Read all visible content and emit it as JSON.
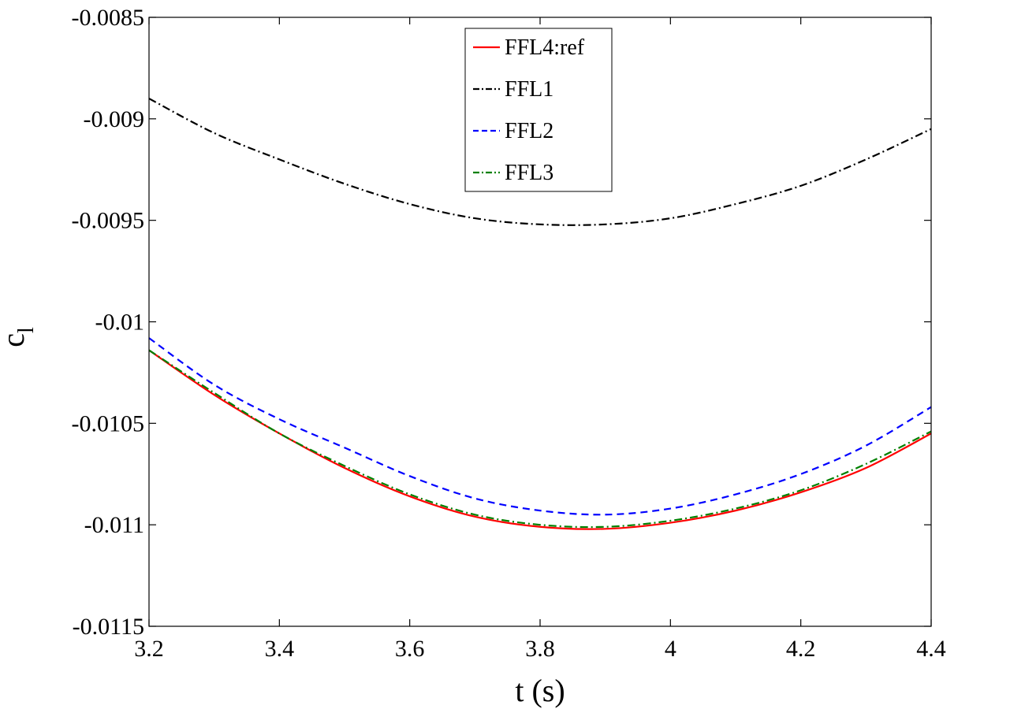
{
  "chart_data": {
    "type": "line",
    "title": "",
    "xlabel": "t (s)",
    "ylabel_base": "c",
    "ylabel_sub": "l",
    "xlim": [
      3.2,
      4.4
    ],
    "ylim": [
      -0.0115,
      -0.0085
    ],
    "xticks": [
      3.2,
      3.4,
      3.6,
      3.8,
      4.0,
      4.2,
      4.4
    ],
    "xtick_labels": [
      "3.2",
      "3.4",
      "3.6",
      "3.8",
      "4",
      "4.2",
      "4.4"
    ],
    "yticks": [
      -0.0085,
      -0.009,
      -0.0095,
      -0.01,
      -0.0105,
      -0.011,
      -0.0115
    ],
    "ytick_labels": [
      "-0.0085",
      "-0.009",
      "-0.0095",
      "-0.01",
      "-0.0105",
      "-0.011",
      "-0.0115"
    ],
    "grid": false,
    "legend_position": "top-center",
    "x": [
      3.2,
      3.3,
      3.4,
      3.5,
      3.6,
      3.7,
      3.8,
      3.9,
      4.0,
      4.1,
      4.2,
      4.3,
      4.4
    ],
    "series": [
      {
        "name": "FFL4:ref",
        "color": "#ff0000",
        "dash": "solid",
        "values": [
          -0.01014,
          -0.01036,
          -0.01055,
          -0.01072,
          -0.01086,
          -0.01096,
          -0.01101,
          -0.01102,
          -0.01099,
          -0.01093,
          -0.01084,
          -0.01072,
          -0.01055
        ]
      },
      {
        "name": "FFL1",
        "color": "#000000",
        "dash": "dashdot",
        "values": [
          -0.0089,
          -0.00907,
          -0.0092,
          -0.00932,
          -0.00942,
          -0.00949,
          -0.00952,
          -0.00952,
          -0.00949,
          -0.00942,
          -0.00933,
          -0.0092,
          -0.00905
        ]
      },
      {
        "name": "FFL2",
        "color": "#0000ff",
        "dash": "dashed",
        "values": [
          -0.01008,
          -0.01031,
          -0.01048,
          -0.01062,
          -0.01076,
          -0.01087,
          -0.01093,
          -0.01095,
          -0.01092,
          -0.01085,
          -0.01075,
          -0.01061,
          -0.01042
        ]
      },
      {
        "name": "FFL3",
        "color": "#008000",
        "dash": "dashdot",
        "values": [
          -0.01014,
          -0.01035,
          -0.01055,
          -0.01071,
          -0.01085,
          -0.01095,
          -0.011,
          -0.01101,
          -0.01098,
          -0.01092,
          -0.01083,
          -0.0107,
          -0.01054
        ]
      }
    ]
  }
}
